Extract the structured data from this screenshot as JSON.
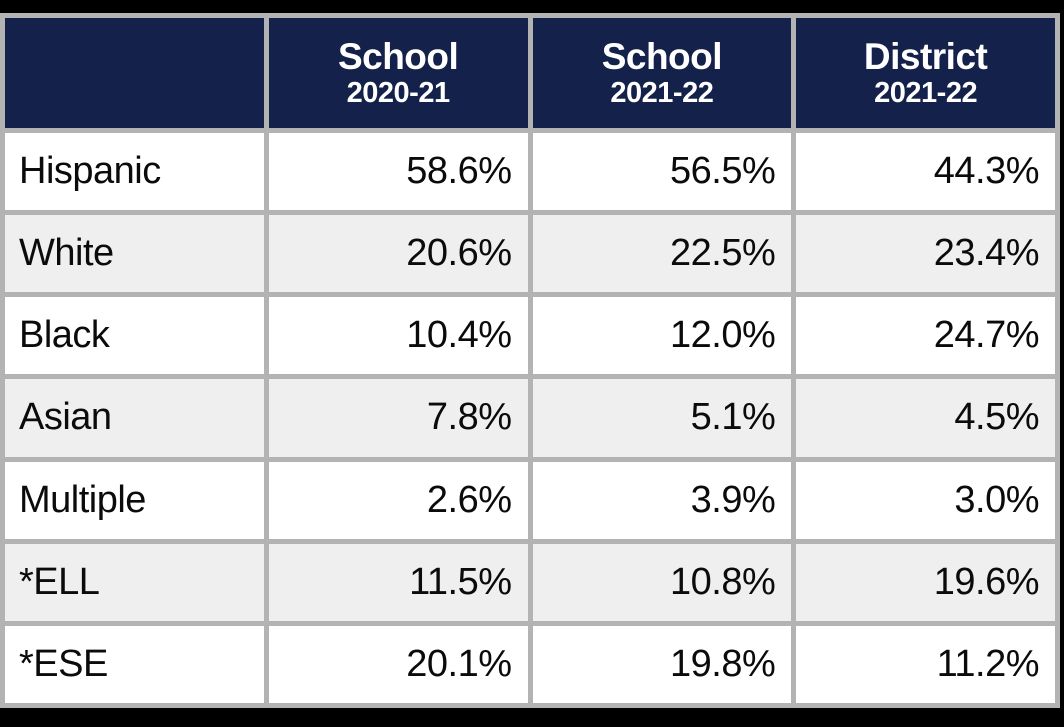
{
  "table": {
    "columns": [
      {
        "title": "",
        "subtitle": ""
      },
      {
        "title": "School",
        "subtitle": "2020-21"
      },
      {
        "title": "School",
        "subtitle": "2021-22"
      },
      {
        "title": "District",
        "subtitle": "2021-22"
      }
    ],
    "rows": [
      {
        "label": "Hispanic",
        "values": [
          "58.6%",
          "56.5%",
          "44.3%"
        ]
      },
      {
        "label": "White",
        "values": [
          "20.6%",
          "22.5%",
          "23.4%"
        ]
      },
      {
        "label": "Black",
        "values": [
          "10.4%",
          "12.0%",
          "24.7%"
        ]
      },
      {
        "label": "Asian",
        "values": [
          "7.8%",
          "5.1%",
          "4.5%"
        ]
      },
      {
        "label": "Multiple",
        "values": [
          "2.6%",
          "3.9%",
          "3.0%"
        ]
      },
      {
        "label": "*ELL",
        "values": [
          "11.5%",
          "10.8%",
          "19.6%"
        ]
      },
      {
        "label": "*ESE",
        "values": [
          "20.1%",
          "19.8%",
          "11.2%"
        ]
      }
    ]
  },
  "chart_data": {
    "type": "table",
    "columns": [
      "",
      "School 2020-21",
      "School 2021-22",
      "District 2021-22"
    ],
    "rows": [
      [
        "Hispanic",
        58.6,
        56.5,
        44.3
      ],
      [
        "White",
        20.6,
        22.5,
        23.4
      ],
      [
        "Black",
        10.4,
        12.0,
        24.7
      ],
      [
        "Asian",
        7.8,
        5.1,
        4.5
      ],
      [
        "Multiple",
        2.6,
        3.9,
        3.0
      ],
      [
        "*ELL",
        11.5,
        10.8,
        19.6
      ],
      [
        "*ESE",
        20.1,
        19.8,
        11.2
      ]
    ],
    "units": "percent"
  },
  "colors": {
    "header_bg": "#14214B",
    "header_text": "#FFFFFF",
    "grid_border": "#B3B3B3",
    "row_bg": "#FFFFFF",
    "row_alt_bg": "#EFEFEF",
    "cell_text": "#0B0B0B",
    "frame": "#000000"
  }
}
